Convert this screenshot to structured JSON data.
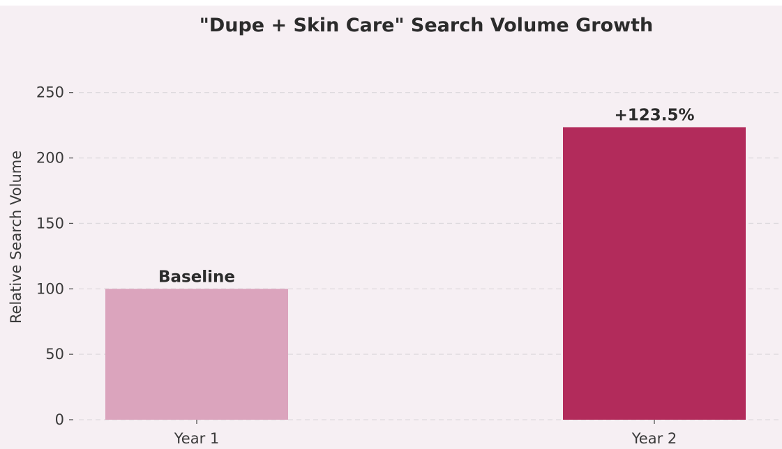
{
  "chart_data": {
    "type": "bar",
    "title": "\"Dupe + Skin Care\" Search Volume Growth",
    "xlabel": "",
    "ylabel": "Relative Search Volume",
    "categories": [
      "Year 1",
      "Year 2"
    ],
    "values": [
      100,
      223.5
    ],
    "annotations": [
      "Baseline",
      "+123.5%"
    ],
    "bar_colors": [
      "#dba4bd",
      "#b22b5b"
    ],
    "ylim": [
      0,
      265
    ],
    "yticks": [
      0,
      50,
      100,
      150,
      200,
      250
    ],
    "ytick_labels": [
      "0",
      "50",
      "100",
      "150",
      "200",
      "250"
    ],
    "grid": "horizontal dashed",
    "background_color": "#f6eff3"
  }
}
